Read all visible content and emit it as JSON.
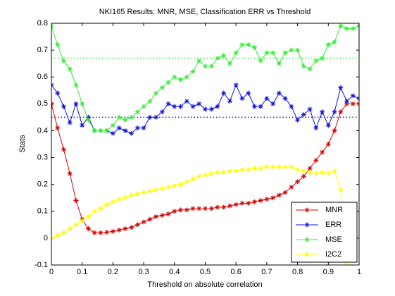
{
  "chart_data": {
    "type": "line",
    "title": "NKI165 Results: MNR, MSE, Classification ERR vs Threshold",
    "xlabel": "Threshold on absolute correlation",
    "ylabel": "Stats",
    "x": [
      0,
      0.02,
      0.04,
      0.06,
      0.08,
      0.1,
      0.12,
      0.14,
      0.16,
      0.18,
      0.2,
      0.22,
      0.24,
      0.26,
      0.28,
      0.3,
      0.32,
      0.34,
      0.36,
      0.38,
      0.4,
      0.42,
      0.44,
      0.46,
      0.48,
      0.5,
      0.52,
      0.54,
      0.56,
      0.58,
      0.6,
      0.62,
      0.64,
      0.66,
      0.68,
      0.7,
      0.72,
      0.74,
      0.76,
      0.78,
      0.8,
      0.82,
      0.84,
      0.86,
      0.88,
      0.9,
      0.92,
      0.94,
      0.96,
      0.98,
      1
    ],
    "series": [
      {
        "name": "MNR",
        "color": "#d40000",
        "values": [
          0.5,
          0.41,
          0.33,
          0.24,
          0.14,
          0.07,
          0.035,
          0.02,
          0.02,
          0.022,
          0.025,
          0.03,
          0.035,
          0.04,
          0.05,
          0.06,
          0.07,
          0.08,
          0.085,
          0.09,
          0.1,
          0.105,
          0.105,
          0.11,
          0.11,
          0.11,
          0.11,
          0.115,
          0.115,
          0.12,
          0.125,
          0.13,
          0.13,
          0.135,
          0.14,
          0.145,
          0.15,
          0.16,
          0.17,
          0.19,
          0.21,
          0.23,
          0.26,
          0.29,
          0.32,
          0.35,
          0.4,
          0.47,
          0.5,
          0.5,
          0.5
        ]
      },
      {
        "name": "ERR",
        "color": "#1010e0",
        "values": [
          0.57,
          0.54,
          0.49,
          0.43,
          0.5,
          0.42,
          0.45,
          0.4,
          0.4,
          0.4,
          0.39,
          0.41,
          0.4,
          0.39,
          0.41,
          0.41,
          0.45,
          0.45,
          0.47,
          0.5,
          0.49,
          0.49,
          0.51,
          0.49,
          0.5,
          0.48,
          0.48,
          0.49,
          0.54,
          0.51,
          0.57,
          0.52,
          0.54,
          0.49,
          0.49,
          0.52,
          0.5,
          0.54,
          0.52,
          0.49,
          0.44,
          0.46,
          0.48,
          0.41,
          0.47,
          0.42,
          0.47,
          0.56,
          0.51,
          0.53,
          0.52
        ]
      },
      {
        "name": "MSE",
        "color": "#33ee33",
        "values": [
          0.79,
          0.72,
          0.66,
          0.63,
          0.57,
          0.5,
          0.44,
          0.4,
          0.4,
          0.4,
          0.42,
          0.45,
          0.44,
          0.45,
          0.47,
          0.49,
          0.51,
          0.54,
          0.56,
          0.58,
          0.6,
          0.59,
          0.6,
          0.62,
          0.66,
          0.64,
          0.64,
          0.67,
          0.68,
          0.65,
          0.69,
          0.72,
          0.72,
          0.71,
          0.66,
          0.69,
          0.69,
          0.65,
          0.69,
          0.7,
          0.7,
          0.64,
          0.63,
          0.66,
          0.67,
          0.72,
          0.73,
          0.79,
          0.78,
          0.78,
          0.79
        ]
      },
      {
        "name": "I2C2",
        "color": "#ffff00",
        "values": [
          0,
          0.01,
          0.02,
          0.035,
          0.05,
          0.065,
          0.08,
          0.1,
          0.11,
          0.125,
          0.135,
          0.145,
          0.15,
          0.16,
          0.165,
          0.17,
          0.175,
          0.18,
          0.185,
          0.19,
          0.195,
          0.2,
          0.21,
          0.22,
          0.23,
          0.235,
          0.24,
          0.245,
          0.245,
          0.25,
          0.25,
          0.255,
          0.255,
          0.26,
          0.26,
          0.265,
          0.265,
          0.265,
          0.265,
          0.265,
          0.255,
          0.25,
          0.245,
          0.24,
          0.245,
          0.24,
          0.25,
          0.18,
          -0.1,
          null,
          null
        ]
      }
    ],
    "reference_lines": [
      {
        "value": 0.67,
        "color": "#33ee33"
      },
      {
        "value": 0.45,
        "color": "#1010e0"
      }
    ],
    "xlim": [
      0,
      1
    ],
    "xticks": [
      0,
      0.1,
      0.2,
      0.3,
      0.4,
      0.5,
      0.6,
      0.7,
      0.8,
      0.9,
      1
    ],
    "ylim": [
      -0.1,
      0.8
    ],
    "yticks": [
      -0.1,
      0,
      0.1,
      0.2,
      0.3,
      0.4,
      0.5,
      0.6,
      0.7,
      0.8
    ],
    "legend": "lower right",
    "grid": false
  }
}
